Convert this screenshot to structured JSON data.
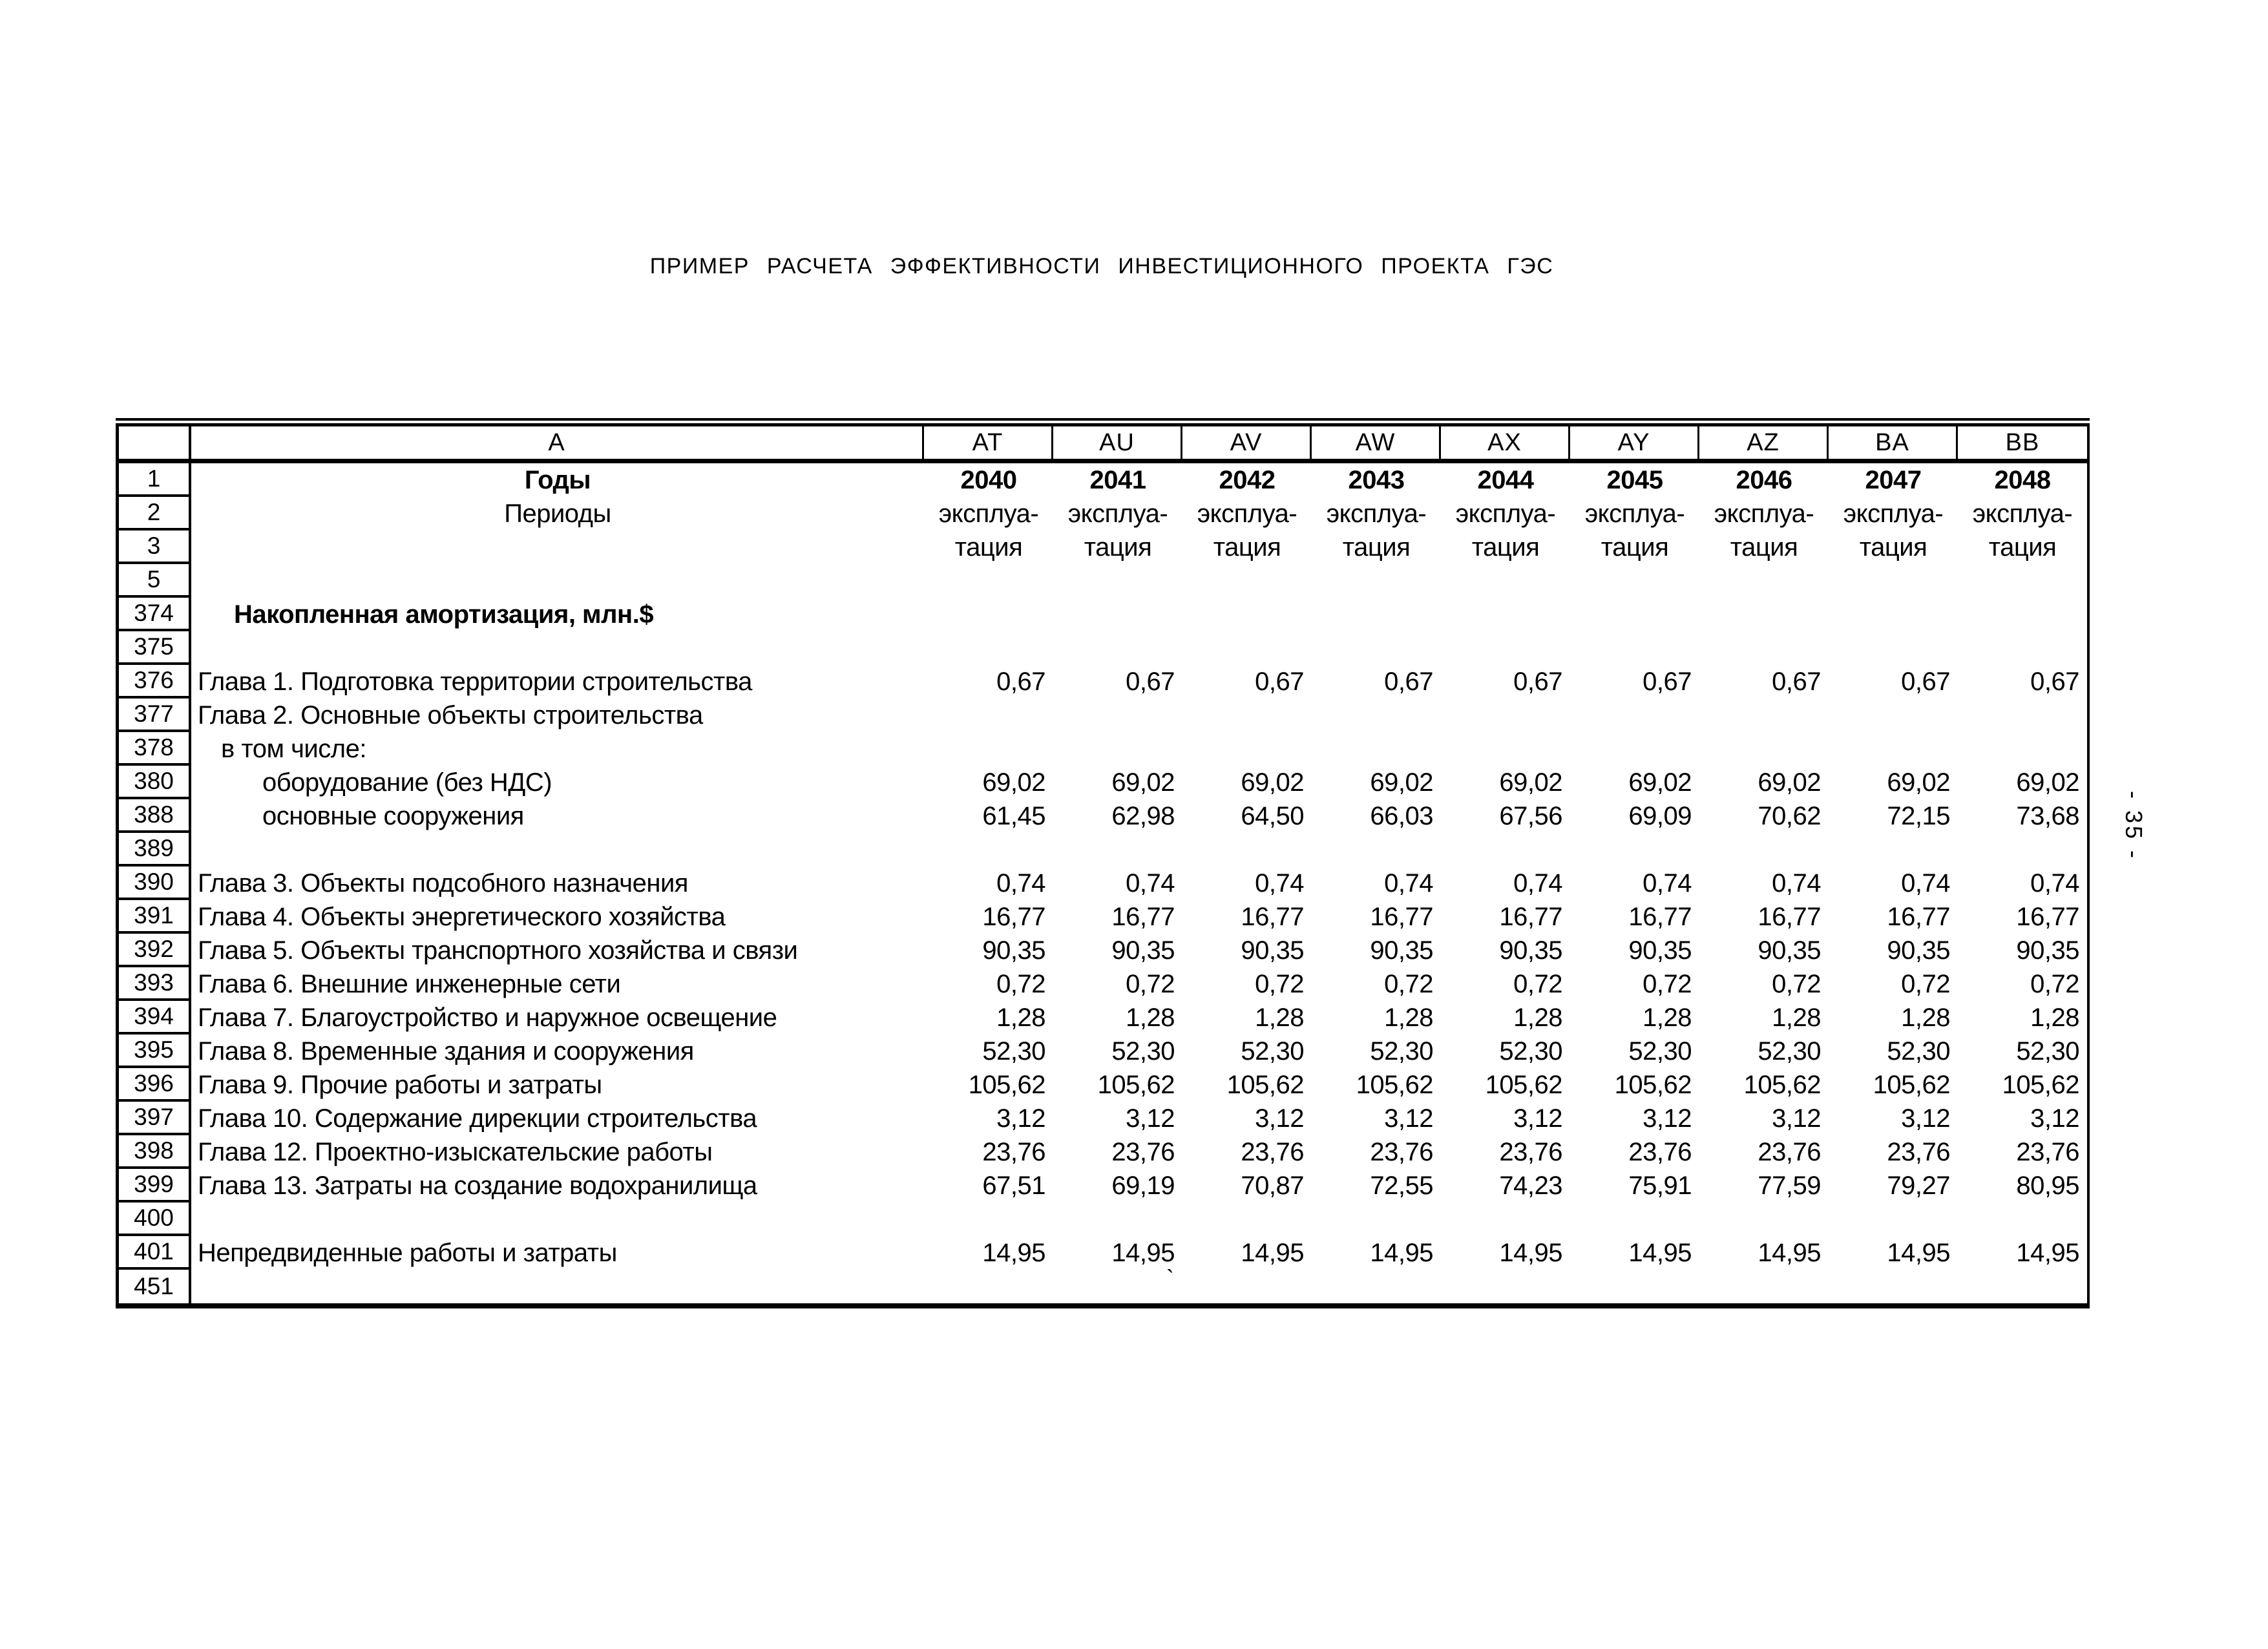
{
  "page": {
    "title": "ПРИМЕР РАСЧЕТА ЭФФЕКТИВНОСТИ ИНВЕСТИЦИОННОГО ПРОЕКТА ГЭС",
    "side_page_number": "- 35 -",
    "stray_mark": "`",
    "colors": {
      "ink": "#000000",
      "paper": "#ffffff"
    }
  },
  "table": {
    "column_letters": [
      "A",
      "AT",
      "AU",
      "AV",
      "AW",
      "AX",
      "AY",
      "AZ",
      "BA",
      "BB"
    ],
    "rows": [
      {
        "num": "1",
        "label": "Годы",
        "center": true,
        "bold": true,
        "indent": 0,
        "align": "center",
        "values_bold": true,
        "values": [
          "2040",
          "2041",
          "2042",
          "2043",
          "2044",
          "2045",
          "2046",
          "2047",
          "2048"
        ]
      },
      {
        "num": "2",
        "label": "Периоды",
        "center": true,
        "bold": false,
        "indent": 0,
        "align": "center",
        "values_bold": false,
        "values": [
          "эксплуа-",
          "эксплуа-",
          "эксплуа-",
          "эксплуа-",
          "эксплуа-",
          "эксплуа-",
          "эксплуа-",
          "эксплуа-",
          "эксплуа-"
        ]
      },
      {
        "num": "3",
        "label": "",
        "center": false,
        "bold": false,
        "indent": 0,
        "align": "center",
        "values_bold": false,
        "values": [
          "тация",
          "тация",
          "тация",
          "тация",
          "тация",
          "тация",
          "тация",
          "тация",
          "тация"
        ]
      },
      {
        "num": "5",
        "label": "",
        "center": false,
        "bold": false,
        "indent": 0,
        "align": "right",
        "values_bold": false,
        "values": []
      },
      {
        "num": "374",
        "label": "Накопленная амортизация, млн.$",
        "center": false,
        "bold": true,
        "indent": 2,
        "align": "right",
        "values_bold": false,
        "values": []
      },
      {
        "num": "375",
        "label": "",
        "center": false,
        "bold": false,
        "indent": 0,
        "align": "right",
        "values_bold": false,
        "values": []
      },
      {
        "num": "376",
        "label": "Глава 1. Подготовка территории строительства",
        "center": false,
        "bold": false,
        "indent": 0,
        "align": "right",
        "values_bold": false,
        "values": [
          "0,67",
          "0,67",
          "0,67",
          "0,67",
          "0,67",
          "0,67",
          "0,67",
          "0,67",
          "0,67"
        ]
      },
      {
        "num": "377",
        "label": "Глава 2. Основные объекты строительства",
        "center": false,
        "bold": false,
        "indent": 0,
        "align": "right",
        "values_bold": false,
        "values": []
      },
      {
        "num": "378",
        "label": "в том числе:",
        "center": false,
        "bold": false,
        "indent": 1,
        "align": "right",
        "values_bold": false,
        "values": []
      },
      {
        "num": "380",
        "label": "оборудование (без НДС)",
        "center": false,
        "bold": false,
        "indent": 3,
        "align": "right",
        "values_bold": false,
        "values": [
          "69,02",
          "69,02",
          "69,02",
          "69,02",
          "69,02",
          "69,02",
          "69,02",
          "69,02",
          "69,02"
        ]
      },
      {
        "num": "388",
        "label": "основные сооружения",
        "center": false,
        "bold": false,
        "indent": 3,
        "align": "right",
        "values_bold": false,
        "values": [
          "61,45",
          "62,98",
          "64,50",
          "66,03",
          "67,56",
          "69,09",
          "70,62",
          "72,15",
          "73,68"
        ]
      },
      {
        "num": "389",
        "label": "",
        "center": false,
        "bold": false,
        "indent": 0,
        "align": "right",
        "values_bold": false,
        "values": []
      },
      {
        "num": "390",
        "label": "Глава 3. Объекты подсобного назначения",
        "center": false,
        "bold": false,
        "indent": 0,
        "align": "right",
        "values_bold": false,
        "values": [
          "0,74",
          "0,74",
          "0,74",
          "0,74",
          "0,74",
          "0,74",
          "0,74",
          "0,74",
          "0,74"
        ]
      },
      {
        "num": "391",
        "label": "Глава 4. Объекты энергетического хозяйства",
        "center": false,
        "bold": false,
        "indent": 0,
        "align": "right",
        "values_bold": false,
        "values": [
          "16,77",
          "16,77",
          "16,77",
          "16,77",
          "16,77",
          "16,77",
          "16,77",
          "16,77",
          "16,77"
        ]
      },
      {
        "num": "392",
        "label": "Глава 5. Объекты транспортного хозяйства и связи",
        "center": false,
        "bold": false,
        "indent": 0,
        "align": "right",
        "values_bold": false,
        "values": [
          "90,35",
          "90,35",
          "90,35",
          "90,35",
          "90,35",
          "90,35",
          "90,35",
          "90,35",
          "90,35"
        ]
      },
      {
        "num": "393",
        "label": "Глава 6. Внешние инженерные сети",
        "center": false,
        "bold": false,
        "indent": 0,
        "align": "right",
        "values_bold": false,
        "values": [
          "0,72",
          "0,72",
          "0,72",
          "0,72",
          "0,72",
          "0,72",
          "0,72",
          "0,72",
          "0,72"
        ]
      },
      {
        "num": "394",
        "label": "Глава 7. Благоустройство и наружное освещение",
        "center": false,
        "bold": false,
        "indent": 0,
        "align": "right",
        "values_bold": false,
        "values": [
          "1,28",
          "1,28",
          "1,28",
          "1,28",
          "1,28",
          "1,28",
          "1,28",
          "1,28",
          "1,28"
        ]
      },
      {
        "num": "395",
        "label": "Глава 8. Временные здания и сооружения",
        "center": false,
        "bold": false,
        "indent": 0,
        "align": "right",
        "values_bold": false,
        "values": [
          "52,30",
          "52,30",
          "52,30",
          "52,30",
          "52,30",
          "52,30",
          "52,30",
          "52,30",
          "52,30"
        ]
      },
      {
        "num": "396",
        "label": "Глава 9. Прочие работы и затраты",
        "center": false,
        "bold": false,
        "indent": 0,
        "align": "right",
        "values_bold": false,
        "values": [
          "105,62",
          "105,62",
          "105,62",
          "105,62",
          "105,62",
          "105,62",
          "105,62",
          "105,62",
          "105,62"
        ]
      },
      {
        "num": "397",
        "label": "Глава 10. Содержание дирекции строительства",
        "center": false,
        "bold": false,
        "indent": 0,
        "align": "right",
        "values_bold": false,
        "values": [
          "3,12",
          "3,12",
          "3,12",
          "3,12",
          "3,12",
          "3,12",
          "3,12",
          "3,12",
          "3,12"
        ]
      },
      {
        "num": "398",
        "label": "Глава 12. Проектно-изыскательские работы",
        "center": false,
        "bold": false,
        "indent": 0,
        "align": "right",
        "values_bold": false,
        "values": [
          "23,76",
          "23,76",
          "23,76",
          "23,76",
          "23,76",
          "23,76",
          "23,76",
          "23,76",
          "23,76"
        ]
      },
      {
        "num": "399",
        "label": "Глава 13. Затраты на создание водохранилища",
        "center": false,
        "bold": false,
        "indent": 0,
        "align": "right",
        "values_bold": false,
        "values": [
          "67,51",
          "69,19",
          "70,87",
          "72,55",
          "74,23",
          "75,91",
          "77,59",
          "79,27",
          "80,95"
        ]
      },
      {
        "num": "400",
        "label": "",
        "center": false,
        "bold": false,
        "indent": 0,
        "align": "right",
        "values_bold": false,
        "values": []
      },
      {
        "num": "401",
        "label": "Непредвиденные работы и затраты",
        "center": false,
        "bold": false,
        "indent": 0,
        "align": "right",
        "values_bold": false,
        "values": [
          "14,95",
          "14,95",
          "14,95",
          "14,95",
          "14,95",
          "14,95",
          "14,95",
          "14,95",
          "14,95"
        ]
      },
      {
        "num": "451",
        "label": "",
        "center": false,
        "bold": false,
        "indent": 0,
        "align": "right",
        "values_bold": false,
        "values": []
      }
    ]
  }
}
